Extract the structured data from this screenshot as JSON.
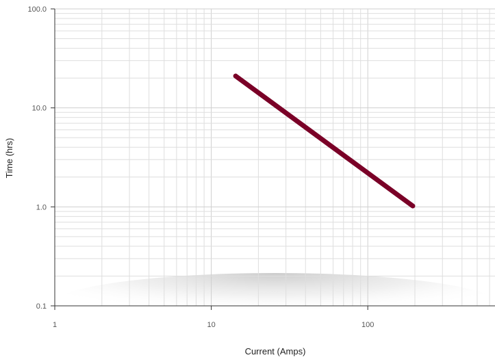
{
  "chart_data": {
    "type": "line",
    "xlabel": "Current (Amps)",
    "ylabel": "Time (hrs)",
    "x_scale": "log",
    "y_scale": "log",
    "xlim": [
      1,
      650
    ],
    "ylim": [
      0.1,
      100
    ],
    "x_ticks": [
      1,
      10,
      100
    ],
    "x_tick_labels": [
      "1",
      "10",
      "100"
    ],
    "y_ticks": [
      0.1,
      1,
      10,
      100
    ],
    "y_tick_labels": [
      "0.1",
      "1.0",
      "10.0",
      "100.0"
    ],
    "grid": true,
    "legend": "none",
    "series": [
      {
        "color": "#7a0027",
        "x": [
          14.3,
          194
        ],
        "y": [
          21,
          1.02
        ]
      }
    ]
  }
}
